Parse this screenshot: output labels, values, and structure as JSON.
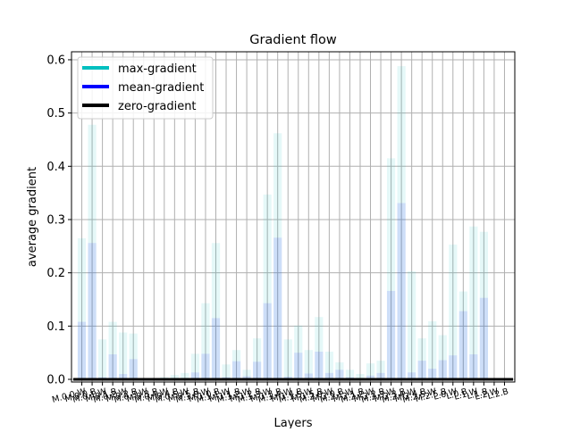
{
  "chart_data": {
    "type": "bar",
    "title": "Gradient flow",
    "xlabel": "Layers",
    "ylabel": "average gradient",
    "ylim": [
      -0.005,
      0.615
    ],
    "yticks": [
      0.0,
      0.1,
      0.2,
      0.3,
      0.4,
      0.5,
      0.6
    ],
    "ytick_labels": [
      "0.0",
      "0.1",
      "0.2",
      "0.3",
      "0.4",
      "0.5",
      "0.6"
    ],
    "grid": true,
    "legend_position": "top-left",
    "categories": [
      "M.0.0.W",
      "M.0.0.B",
      "M.0.1.W",
      "M.0.1.B",
      "M.0.2.W",
      "M.0.2.B",
      "M.0.3.W",
      "M.0.3.B",
      "M.0.4.W",
      "M.0.4.B",
      "M.0.5.W",
      "M.0.5.B",
      "M.1.0.W",
      "M.1.0.B",
      "M.1.1.W",
      "M.1.1.B",
      "M.1.2.W",
      "M.1.2.B",
      "M.1.3.W",
      "M.1.3.B",
      "M.1.4.W",
      "M.1.4.B",
      "M.1.5.W",
      "M.1.5.B",
      "M.2.0.W",
      "M.2.0.B",
      "M.2.1.W",
      "M.2.1.B",
      "M.2.2.W",
      "M.2.2.B",
      "M.2.3.W",
      "M.2.3.B",
      "M.2.4.W",
      "M.2.4.B",
      "M.2.5.W",
      "M.2.5.B",
      "L.0.W",
      "L.0.B",
      "L.1.W",
      "L.1.B",
      "L.2.W",
      "L.2.B"
    ],
    "series": [
      {
        "name": "max-gradient",
        "color": "#00bfbf",
        "values": [
          0.265,
          0.478,
          0.075,
          0.108,
          0.088,
          0.086,
          0.0,
          0.0,
          0.004,
          0.008,
          0.012,
          0.048,
          0.143,
          0.256,
          0.028,
          0.055,
          0.018,
          0.077,
          0.347,
          0.462,
          0.075,
          0.101,
          0.055,
          0.117,
          0.052,
          0.032,
          0.018,
          0.01,
          0.03,
          0.035,
          0.415,
          0.588,
          0.203,
          0.077,
          0.109,
          0.083,
          0.253,
          0.165,
          0.287,
          0.277,
          0.0,
          0.0
        ]
      },
      {
        "name": "mean-gradient",
        "color": "#0000ff",
        "values": [
          0.108,
          0.256,
          0.004,
          0.047,
          0.01,
          0.038,
          0.0,
          0.0,
          0.001,
          0.002,
          0.002,
          0.013,
          0.048,
          0.115,
          0.004,
          0.034,
          0.006,
          0.033,
          0.143,
          0.266,
          0.005,
          0.05,
          0.011,
          0.052,
          0.012,
          0.018,
          0.004,
          0.002,
          0.007,
          0.012,
          0.166,
          0.331,
          0.013,
          0.035,
          0.02,
          0.036,
          0.045,
          0.128,
          0.047,
          0.153,
          0.0,
          0.0
        ]
      },
      {
        "name": "zero-gradient",
        "color": "#000000",
        "values": [
          0,
          0,
          0,
          0,
          0,
          0,
          0,
          0,
          0,
          0,
          0,
          0,
          0,
          0,
          0,
          0,
          0,
          0,
          0,
          0,
          0,
          0,
          0,
          0,
          0,
          0,
          0,
          0,
          0,
          0,
          0,
          0,
          0,
          0,
          0,
          0,
          0,
          0,
          0,
          0,
          0,
          0
        ]
      }
    ]
  }
}
